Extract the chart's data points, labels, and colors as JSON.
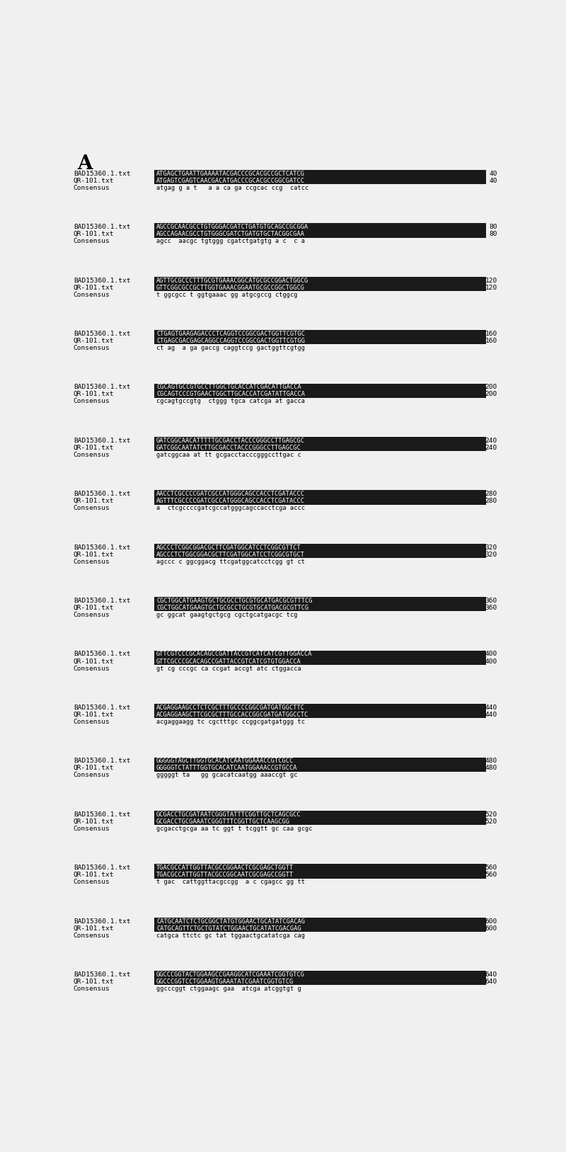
{
  "title": "A",
  "bg_color": "#f0f0f0",
  "seq_bg_color": "#1a1a1a",
  "label1": "BAD15360.1.txt",
  "label2": "QR-101.txt",
  "label3": "Consensus",
  "blocks": [
    {
      "num": 40,
      "seq1": "ATGAGCTGAATTGAAAATACGACCCGCACGCCGCTCATCG",
      "seq2": "ATGAGTCGAGTCAACGACATGACCCGCACGCCGGCGATCC",
      "cons": "atgag g a t   a a ca ga ccgcac ccg  catcc"
    },
    {
      "num": 80,
      "seq1": "AGCCGCAACGCCTGTGGGACGATCTGATGTGCAGCCGCGGA",
      "seq2": "AGCCAGAACGCCTGTGGGCGATCTGATGTGCTACGGCGAA",
      "cons": "agcc  aacgc tgtggg cgatctgatgtg a c  c a"
    },
    {
      "num": 120,
      "seq1": "AGTTGCGCCCTTTGCGTGAAACGGCATGCGCCGGACTGGCG",
      "seq2": "GTTCGGCGCCGCTTGGTGAAACGGAATGCGCCGGCTGGCG",
      "cons": "t ggcgcc t ggtgaaac gg atgcgccg ctggcg"
    },
    {
      "num": 160,
      "seq1": "CTGAGTGAAGAGACCCTCAGGTCCGGCGACTGGTTCGTGC",
      "seq2": "CTGAGCGACGAGCAGGCCAGGTCCGGCGACTGGTTCGTGG",
      "cons": "ct ag  a ga gaccg caggtccg gactggttcgtgg"
    },
    {
      "num": 200,
      "seq1": "CGCAGTGCCGTGCCTTGGCTGCACCATCGACATTGACCA",
      "seq2": "CGCAGTCCCGTGAACTGGCTTGCACCATCGATATTGACCA",
      "cons": "cgcagtgccgtg  ctggg tgca catcga at gacca"
    },
    {
      "num": 240,
      "seq1": "GATCGGCAACATTTTTGCGACCTACCCGGGCCTTGAGCGC",
      "seq2": "GATCGGCAATATCTTGCGACCTACCCGGGCCTTGAGCGC",
      "cons": "gatcggcaa at tt gcgacctacccgggccttgac c"
    },
    {
      "num": 280,
      "seq1": "AACCTCGCCCCGATCGCCATGGGCAGCCACCTCGATACCC",
      "seq2": "AGTTTCGCCCCGATCGCCATGGGCAGCCACCTCGATACCC",
      "cons": "a  ctcgccccgatcgccatgggcagccacctcga accc"
    },
    {
      "num": 320,
      "seq1": "AGCCCTCGGCGGACGCTTCGATGGCATCCTCGGCGTTCT",
      "seq2": "AGCCCTCTGGCGGACGCTTCGATGGCATCCTCGGCGTGCT",
      "cons": "agccc c ggcggacg ttcgatggcatcctcgg gt ct"
    },
    {
      "num": 360,
      "seq1": "CGCTGGCATGAAGTGCTGCGCCTGCGTGCATGACGCGTTTCG",
      "seq2": "CGCTGGCATGAAGTGCTGCGCCTGCGTGCATGACGCGTTCG",
      "cons": "gc ggcat gaagtgctgcg cgctgcatgacgc tcg"
    },
    {
      "num": 400,
      "seq1": "GTTCGTCCCGCACAGCCGATTACCGTCATCATCGTTGGACCA",
      "seq2": "GTTCGCCCGCACAGCCGATTACCGTCATCGTGTGGACCA",
      "cons": "gt cg cccgc ca ccgat accgt atc ctggacca"
    },
    {
      "num": 440,
      "seq1": "ACGAGGAAGCCTCTCGCTTTGCCCCGGCGATGATGGCTTC",
      "seq2": "ACGAGGAAGCTTCGCGCTTTGCCACCGGCGATGATGGCCTC",
      "cons": "acgaggaagg tc cgctttgc ccggcgatgatggg tc"
    },
    {
      "num": 480,
      "seq1": "GGGGGTAGCTTGGTGCACATCAATGGAAACCGTCGCC",
      "seq2": "GGGGGTCTATTTGGTGCACATCAATGGAAACCGTGCCA",
      "cons": "gggggt ta   gg gcacatcaatgg aaaccgt gc"
    },
    {
      "num": 520,
      "seq1": "GCGACCTGCGATAATCGGGTATTTCGGTTGCTCAGCGCC",
      "seq2": "GCGACCTGCGAAATCGGGTTTCGGTTGCTCAAGCGG",
      "cons": "gcgacctgcga aa tc ggt t tcggtt gc caa gcgc"
    },
    {
      "num": 560,
      "seq1": "TGACGCCATTGGTTACGCCGGAACTCGCGAGCTGGTT",
      "seq2": "TGACGCCATTGGTTACGCCGGCAATCGCGAGCCGGTT",
      "cons": "t gac  cattggttacgccgg  a c cgagcc gg tt"
    },
    {
      "num": 600,
      "seq1": "CATGCAATCTCTGCGGCTATGTGGAACTGCATATCGACAG",
      "seq2": "CATGCAGTTCTGCTGTATCTGGAACTGCATATCGACGAG",
      "cons": "catgca ttctc gc tat tggaactgcatatcga cag"
    },
    {
      "num": 640,
      "seq1": "GGCCCGGTACTGGAAGCCGAAGGCATCGAAATCGGTGTCG",
      "seq2": "GGCCCGGTCCTGGAAGTGAAATATCGAATCGGTGTCG",
      "cons": "ggcccggt ctggaagc gaa  atcga atcggtgt g"
    }
  ]
}
